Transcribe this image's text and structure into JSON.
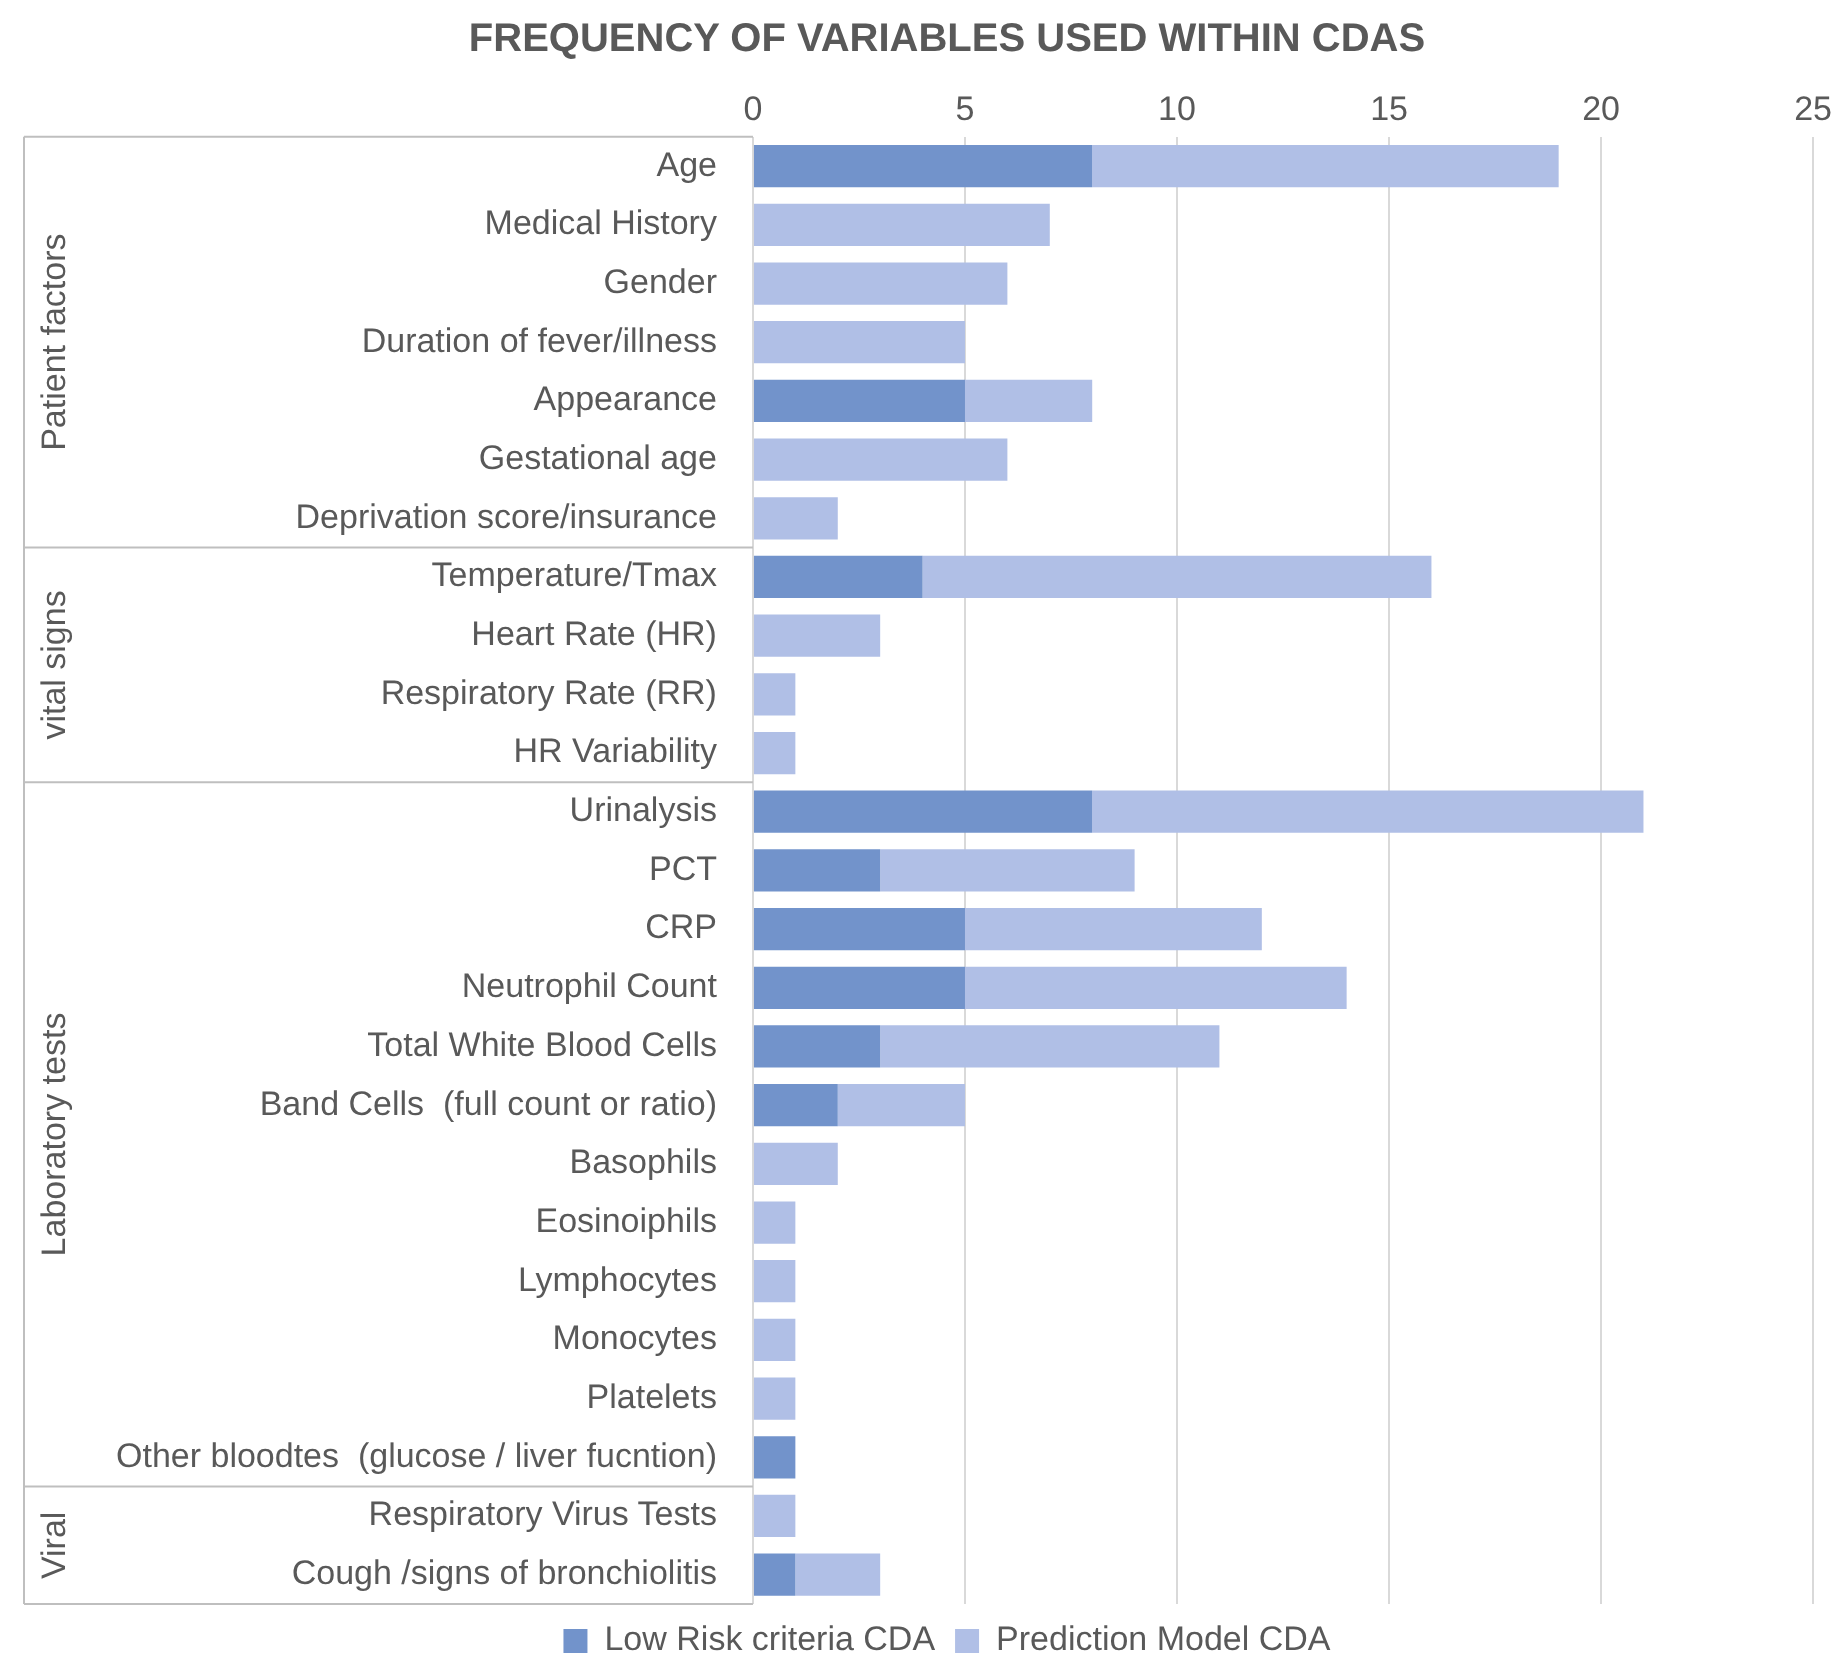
{
  "chart_data": {
    "type": "bar",
    "orientation": "horizontal",
    "stacked": true,
    "title": "FREQUENCY OF VARIABLES USED WITHIN CDAS",
    "categories": [
      "Age",
      "Medical History",
      "Gender",
      "Duration of fever/illness",
      "Appearance",
      "Gestational age",
      "Deprivation score/insurance",
      "Temperature/Tmax",
      "Heart Rate (HR)",
      "Respiratory Rate (RR)",
      "HR Variability",
      "Urinalysis",
      "PCT",
      "CRP",
      "Neutrophil Count",
      "Total White Blood Cells",
      "Band Cells  (full count or ratio)",
      "Basophils",
      "Eosinoiphils",
      "Lymphocytes",
      "Monocytes",
      "Platelets",
      "Other bloodtes  (glucose / liver fucntion)",
      "Respiratory Virus Tests",
      "Cough /signs of bronchiolitis"
    ],
    "series": [
      {
        "name": "Low Risk criteria CDA",
        "color": "#7293cb",
        "values": [
          8,
          0,
          0,
          0,
          5,
          0,
          0,
          4,
          0,
          0,
          0,
          8,
          3,
          5,
          5,
          3,
          2,
          0,
          0,
          0,
          0,
          0,
          1,
          0,
          1
        ]
      },
      {
        "name": "Prediction Model CDA",
        "color": "#b0bfe6",
        "values": [
          11,
          7,
          6,
          5,
          3,
          6,
          2,
          12,
          3,
          1,
          1,
          13,
          6,
          7,
          9,
          8,
          3,
          2,
          1,
          1,
          1,
          1,
          0,
          1,
          2
        ]
      }
    ],
    "xlim": [
      0,
      25
    ],
    "xticks": [
      0,
      5,
      10,
      15,
      20,
      25
    ],
    "grid": "x",
    "legend": "bottom",
    "annotations": [
      "Patient factors",
      "vital signs",
      "Laboratory tests",
      "Viral"
    ]
  }
}
